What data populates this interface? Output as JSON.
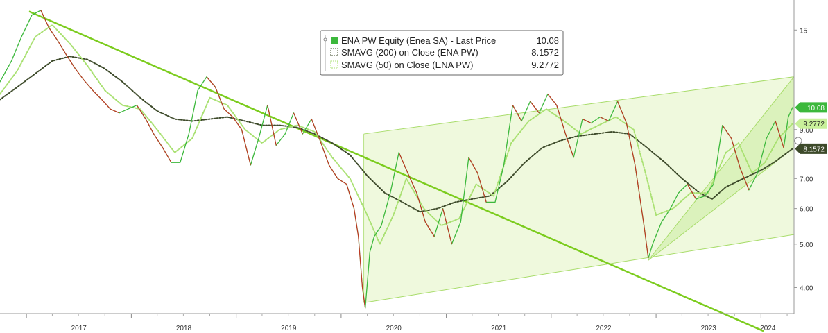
{
  "chart_data": {
    "type": "line",
    "y_scale": "log",
    "ylim": [
      3.5,
      17.5
    ],
    "y_ticks": [
      {
        "value": 4,
        "label": "4.00"
      },
      {
        "value": 5,
        "label": "5.00"
      },
      {
        "value": 6,
        "label": "6.00"
      },
      {
        "value": 7,
        "label": "7.00"
      },
      {
        "value": 9,
        "label": "9.00"
      },
      {
        "value": 15,
        "label": "15"
      }
    ],
    "x_range": [
      "2016-10-01",
      "2024-04-25"
    ],
    "x_ticks": [
      {
        "date": "2017-01-01",
        "label": "2017"
      },
      {
        "date": "2018-01-01",
        "label": "2018"
      },
      {
        "date": "2019-01-01",
        "label": "2019"
      },
      {
        "date": "2020-01-01",
        "label": "2020"
      },
      {
        "date": "2021-01-01",
        "label": "2021"
      },
      {
        "date": "2022-01-01",
        "label": "2022"
      },
      {
        "date": "2023-01-01",
        "label": "2023"
      },
      {
        "date": "2024-01-01",
        "label": "2024"
      }
    ],
    "legend": {
      "position": "top-center",
      "entries": [
        {
          "name": "ENA PW Equity (Enea SA) - Last Price",
          "value": "10.08",
          "color": "#3cb83c"
        },
        {
          "name": "SMAVG (200)  on Close (ENA PW)",
          "value": "8.1572",
          "color": "#3d4a2a"
        },
        {
          "name": "SMAVG (50)  on Close (ENA PW)",
          "value": "9.2772",
          "color": "#a8e070"
        }
      ]
    },
    "last_value_tags": [
      {
        "label": "10.08",
        "value": 10.08,
        "color": "#3cb83c",
        "text_color": "#ffffff"
      },
      {
        "label": "9.2772",
        "value": 9.2772,
        "color": "#c8f09a",
        "text_color": "#222222"
      },
      {
        "label": "8.1572",
        "value": 8.1572,
        "color": "#3d4a2a",
        "text_color": "#ffffff"
      }
    ],
    "series": [
      {
        "name": "ENA PW Equity (Enea SA) - Last Price",
        "color": "#3cb83c",
        "points": [
          [
            "2016-10-01",
            11.5
          ],
          [
            "2016-11-10",
            12.8
          ],
          [
            "2016-12-15",
            14.5
          ],
          [
            "2017-01-20",
            16.2
          ],
          [
            "2017-02-20",
            16.6
          ],
          [
            "2017-03-20",
            15.2
          ],
          [
            "2017-04-20",
            14.2
          ],
          [
            "2017-05-20",
            13.2
          ],
          [
            "2017-06-20",
            12.3
          ],
          [
            "2017-07-20",
            11.6
          ],
          [
            "2017-08-20",
            11.0
          ],
          [
            "2017-09-20",
            10.5
          ],
          [
            "2017-10-20",
            10.0
          ],
          [
            "2017-11-20",
            9.8
          ],
          [
            "2017-12-20",
            10.0
          ],
          [
            "2018-01-20",
            10.2
          ],
          [
            "2018-02-20",
            9.5
          ],
          [
            "2018-03-20",
            8.8
          ],
          [
            "2018-04-20",
            8.2
          ],
          [
            "2018-05-20",
            7.6
          ],
          [
            "2018-06-20",
            7.6
          ],
          [
            "2018-07-20",
            8.8
          ],
          [
            "2018-08-20",
            11.0
          ],
          [
            "2018-09-20",
            11.8
          ],
          [
            "2018-10-20",
            11.2
          ],
          [
            "2018-11-20",
            10.0
          ],
          [
            "2018-12-20",
            9.6
          ],
          [
            "2019-01-20",
            9.0
          ],
          [
            "2019-02-20",
            7.5
          ],
          [
            "2019-03-20",
            8.6
          ],
          [
            "2019-04-20",
            10.2
          ],
          [
            "2019-05-20",
            8.3
          ],
          [
            "2019-06-20",
            8.8
          ],
          [
            "2019-07-20",
            9.8
          ],
          [
            "2019-08-20",
            8.8
          ],
          [
            "2019-09-20",
            9.5
          ],
          [
            "2019-10-20",
            8.5
          ],
          [
            "2019-11-20",
            7.5
          ],
          [
            "2019-12-20",
            7.0
          ],
          [
            "2020-01-20",
            6.8
          ],
          [
            "2020-02-15",
            6.0
          ],
          [
            "2020-03-01",
            5.2
          ],
          [
            "2020-03-15",
            4.0
          ],
          [
            "2020-03-25",
            3.6
          ],
          [
            "2020-04-10",
            4.8
          ],
          [
            "2020-04-25",
            5.2
          ],
          [
            "2020-05-20",
            5.5
          ],
          [
            "2020-06-20",
            6.5
          ],
          [
            "2020-07-20",
            8.0
          ],
          [
            "2020-08-20",
            7.2
          ],
          [
            "2020-09-20",
            6.5
          ],
          [
            "2020-10-20",
            5.6
          ],
          [
            "2020-11-20",
            5.2
          ],
          [
            "2020-12-20",
            6.0
          ],
          [
            "2021-01-20",
            5.0
          ],
          [
            "2021-02-20",
            5.6
          ],
          [
            "2021-03-20",
            7.8
          ],
          [
            "2021-04-20",
            7.2
          ],
          [
            "2021-05-20",
            6.2
          ],
          [
            "2021-06-20",
            6.2
          ],
          [
            "2021-07-20",
            7.5
          ],
          [
            "2021-08-20",
            10.2
          ],
          [
            "2021-09-20",
            9.4
          ],
          [
            "2021-10-20",
            10.4
          ],
          [
            "2021-11-20",
            9.8
          ],
          [
            "2021-12-20",
            10.8
          ],
          [
            "2022-01-20",
            10.2
          ],
          [
            "2022-02-20",
            8.8
          ],
          [
            "2022-03-20",
            7.8
          ],
          [
            "2022-04-20",
            9.5
          ],
          [
            "2022-05-20",
            9.3
          ],
          [
            "2022-06-20",
            9.6
          ],
          [
            "2022-07-20",
            9.4
          ],
          [
            "2022-08-20",
            10.4
          ],
          [
            "2022-09-20",
            9.3
          ],
          [
            "2022-10-20",
            7.5
          ],
          [
            "2022-11-20",
            5.5
          ],
          [
            "2022-12-05",
            4.65
          ],
          [
            "2022-12-20",
            5.0
          ],
          [
            "2023-01-20",
            5.6
          ],
          [
            "2023-02-20",
            6.0
          ],
          [
            "2023-03-20",
            6.5
          ],
          [
            "2023-04-20",
            6.8
          ],
          [
            "2023-05-20",
            6.3
          ],
          [
            "2023-06-20",
            6.4
          ],
          [
            "2023-07-20",
            6.8
          ],
          [
            "2023-08-20",
            9.2
          ],
          [
            "2023-09-20",
            8.6
          ],
          [
            "2023-10-20",
            7.4
          ],
          [
            "2023-11-20",
            6.6
          ],
          [
            "2023-12-20",
            7.2
          ],
          [
            "2024-01-20",
            8.6
          ],
          [
            "2024-02-20",
            9.4
          ],
          [
            "2024-03-20",
            8.2
          ],
          [
            "2024-04-05",
            9.6
          ],
          [
            "2024-04-20",
            10.08
          ]
        ]
      },
      {
        "name": "SMAVG (200)  on Close (ENA PW)",
        "color": "#3d4a2a",
        "points": [
          [
            "2016-10-01",
            10.5
          ],
          [
            "2016-12-01",
            11.2
          ],
          [
            "2017-02-01",
            12.0
          ],
          [
            "2017-04-01",
            12.8
          ],
          [
            "2017-06-01",
            13.1
          ],
          [
            "2017-08-01",
            12.9
          ],
          [
            "2017-10-01",
            12.3
          ],
          [
            "2017-12-01",
            11.5
          ],
          [
            "2018-02-01",
            10.6
          ],
          [
            "2018-04-01",
            9.9
          ],
          [
            "2018-06-01",
            9.5
          ],
          [
            "2018-08-01",
            9.4
          ],
          [
            "2018-10-01",
            9.5
          ],
          [
            "2018-12-01",
            9.6
          ],
          [
            "2019-02-01",
            9.4
          ],
          [
            "2019-04-01",
            9.2
          ],
          [
            "2019-06-01",
            9.2
          ],
          [
            "2019-08-01",
            9.1
          ],
          [
            "2019-10-01",
            8.8
          ],
          [
            "2019-12-01",
            8.4
          ],
          [
            "2020-02-01",
            7.9
          ],
          [
            "2020-04-01",
            7.1
          ],
          [
            "2020-06-01",
            6.5
          ],
          [
            "2020-08-01",
            6.2
          ],
          [
            "2020-10-01",
            5.9
          ],
          [
            "2020-12-01",
            6.0
          ],
          [
            "2021-02-01",
            6.2
          ],
          [
            "2021-04-01",
            6.3
          ],
          [
            "2021-06-01",
            6.4
          ],
          [
            "2021-08-01",
            6.9
          ],
          [
            "2021-10-01",
            7.6
          ],
          [
            "2021-12-01",
            8.2
          ],
          [
            "2022-02-01",
            8.5
          ],
          [
            "2022-04-01",
            8.7
          ],
          [
            "2022-06-01",
            8.8
          ],
          [
            "2022-08-01",
            8.9
          ],
          [
            "2022-10-01",
            8.8
          ],
          [
            "2022-12-01",
            8.2
          ],
          [
            "2023-02-01",
            7.6
          ],
          [
            "2023-04-01",
            7.0
          ],
          [
            "2023-06-01",
            6.5
          ],
          [
            "2023-07-15",
            6.3
          ],
          [
            "2023-09-01",
            6.7
          ],
          [
            "2023-11-01",
            7.0
          ],
          [
            "2024-01-01",
            7.3
          ],
          [
            "2024-02-15",
            7.6
          ],
          [
            "2024-04-20",
            8.1572
          ]
        ]
      },
      {
        "name": "SMAVG (50)  on Close (ENA PW)",
        "color": "#a8e070",
        "points": [
          [
            "2016-10-01",
            10.8
          ],
          [
            "2016-12-01",
            12.2
          ],
          [
            "2017-02-01",
            14.5
          ],
          [
            "2017-04-01",
            15.4
          ],
          [
            "2017-06-01",
            14.0
          ],
          [
            "2017-08-01",
            12.5
          ],
          [
            "2017-10-01",
            11.0
          ],
          [
            "2017-12-01",
            10.2
          ],
          [
            "2018-02-01",
            10.0
          ],
          [
            "2018-04-01",
            9.0
          ],
          [
            "2018-06-01",
            8.0
          ],
          [
            "2018-08-01",
            8.6
          ],
          [
            "2018-10-01",
            10.6
          ],
          [
            "2018-12-01",
            10.2
          ],
          [
            "2019-02-01",
            9.0
          ],
          [
            "2019-04-01",
            8.4
          ],
          [
            "2019-06-01",
            9.0
          ],
          [
            "2019-08-01",
            9.2
          ],
          [
            "2019-10-01",
            8.9
          ],
          [
            "2019-12-01",
            7.8
          ],
          [
            "2020-02-01",
            7.0
          ],
          [
            "2020-04-01",
            5.8
          ],
          [
            "2020-05-15",
            5.0
          ],
          [
            "2020-07-01",
            5.8
          ],
          [
            "2020-08-15",
            7.0
          ],
          [
            "2020-10-15",
            6.0
          ],
          [
            "2020-12-15",
            5.5
          ],
          [
            "2021-02-15",
            5.7
          ],
          [
            "2021-04-15",
            6.8
          ],
          [
            "2021-06-15",
            6.4
          ],
          [
            "2021-08-15",
            8.4
          ],
          [
            "2021-10-15",
            9.4
          ],
          [
            "2021-12-15",
            10.0
          ],
          [
            "2022-02-15",
            9.4
          ],
          [
            "2022-04-15",
            8.8
          ],
          [
            "2022-06-15",
            9.2
          ],
          [
            "2022-08-15",
            9.6
          ],
          [
            "2022-10-15",
            9.0
          ],
          [
            "2022-11-25",
            7.2
          ],
          [
            "2023-01-01",
            5.8
          ],
          [
            "2023-03-01",
            6.0
          ],
          [
            "2023-05-01",
            6.5
          ],
          [
            "2023-07-01",
            6.5
          ],
          [
            "2023-09-01",
            8.0
          ],
          [
            "2023-10-15",
            8.4
          ],
          [
            "2023-12-01",
            7.2
          ],
          [
            "2024-01-15",
            7.6
          ],
          [
            "2024-03-01",
            8.6
          ],
          [
            "2024-04-20",
            9.2772
          ]
        ]
      }
    ],
    "trend_line": {
      "color": "#7ccc1e",
      "points": [
        [
          "2017-01-10",
          16.5
        ],
        [
          "2024-01-10",
          3.2
        ]
      ]
    },
    "channels": [
      {
        "fill": "#eaf7d2",
        "edge": "#a8dc6a",
        "upper": [
          [
            "2020-03-20",
            8.8
          ],
          [
            "2024-04-25",
            11.8
          ]
        ],
        "lower": [
          [
            "2020-03-20",
            3.7
          ],
          [
            "2024-04-25",
            5.25
          ]
        ]
      },
      {
        "fill": "#d4efb0",
        "edge": "#a8dc6a",
        "upper": [
          [
            "2022-12-05",
            4.6
          ],
          [
            "2024-04-25",
            11.8
          ]
        ],
        "lower": [
          [
            "2022-12-05",
            4.6
          ],
          [
            "2024-04-25",
            8.2
          ]
        ]
      }
    ]
  }
}
